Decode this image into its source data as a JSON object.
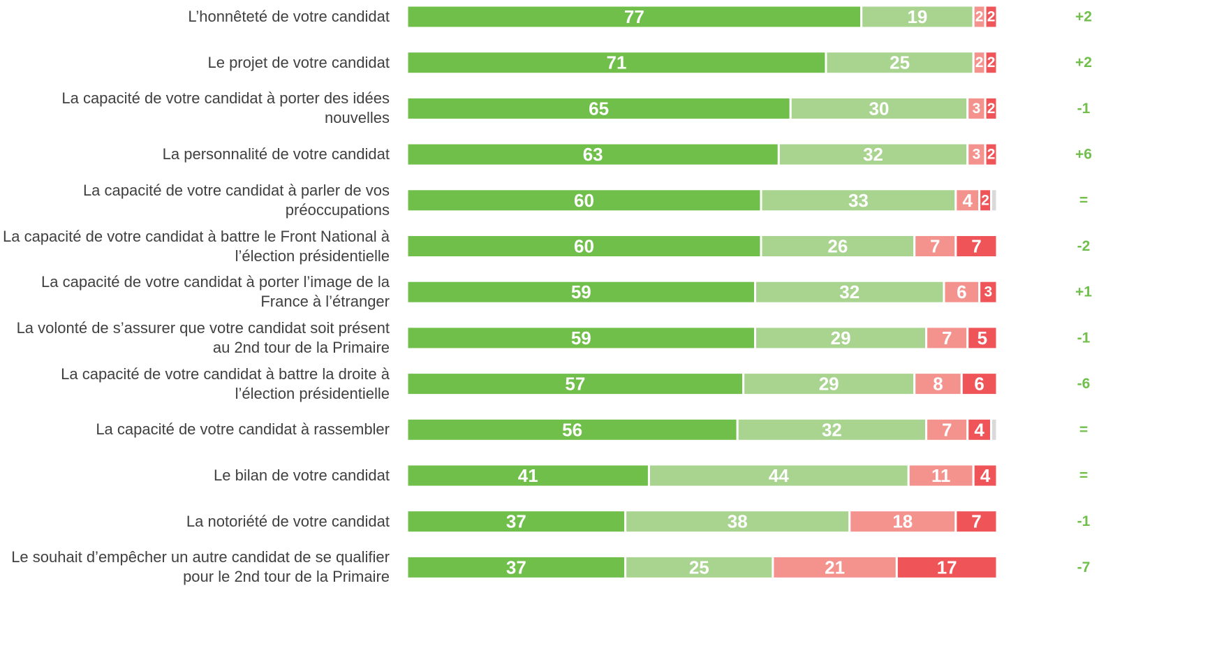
{
  "chart_data": {
    "type": "stacked-bar-horizontal",
    "categories": [
      "L’honnêteté de votre candidat",
      "Le projet de votre candidat",
      "La capacité de votre candidat à porter des idées nouvelles",
      "La personnalité de votre candidat",
      "La capacité de votre candidat à parler de vos préoccupations",
      "La capacité de votre candidat à battre le Front National à l’élection présidentielle",
      "La capacité de votre candidat à porter l’image de la France à l’étranger",
      "La volonté de s’assurer que votre candidat soit présent au 2nd tour de la Primaire",
      "La capacité de votre candidat à battre la droite à l’élection présidentielle",
      "La capacité de votre candidat à rassembler",
      "Le bilan de votre candidat",
      "La notoriété de votre candidat",
      "Le souhait d’empêcher un autre candidat de se qualifier pour le 2nd tour de la Primaire"
    ],
    "series": [
      {
        "color": "#70bf4b",
        "values": [
          77,
          71,
          65,
          63,
          60,
          60,
          59,
          59,
          57,
          56,
          41,
          37,
          37
        ]
      },
      {
        "color": "#a9d48f",
        "values": [
          19,
          25,
          30,
          32,
          33,
          26,
          32,
          29,
          29,
          32,
          44,
          38,
          25
        ]
      },
      {
        "color": "#f4938e",
        "values": [
          2,
          2,
          3,
          3,
          4,
          7,
          6,
          7,
          8,
          7,
          11,
          18,
          21
        ]
      },
      {
        "color": "#ef5458",
        "values": [
          2,
          2,
          2,
          2,
          2,
          7,
          3,
          5,
          6,
          4,
          4,
          7,
          17
        ]
      },
      {
        "color": "#d9d9d9",
        "values": [
          null,
          null,
          null,
          null,
          1,
          null,
          null,
          null,
          null,
          1,
          null,
          null,
          null
        ]
      }
    ],
    "changes": [
      "+2",
      "+2",
      "-1",
      "+6",
      "=",
      "-2",
      "+1",
      "-1",
      "-6",
      "=",
      "=",
      "-1",
      "-7"
    ],
    "changes_color": "#70bf4b",
    "xlim": [
      0,
      100
    ]
  }
}
